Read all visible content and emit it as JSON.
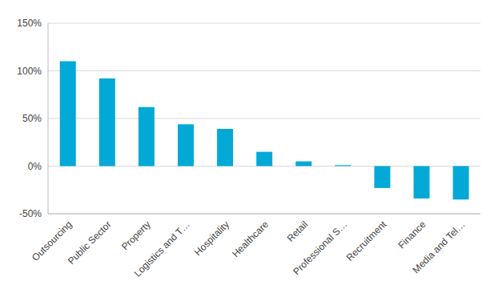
{
  "chart_data": {
    "type": "bar",
    "categories": [
      "Outsourcing",
      "Public Sector",
      "Property",
      "Logistics and T…",
      "Hospitality",
      "Healthcare",
      "Retail",
      "Professional S…",
      "Recruitment",
      "Finance",
      "Media and Tel…"
    ],
    "values": [
      110,
      92,
      62,
      44,
      39,
      15,
      5,
      1,
      -23,
      -34,
      -35
    ],
    "color": "#03a9d6",
    "ylim": [
      -50,
      150
    ],
    "yticks": [
      {
        "value": -50,
        "label": "-50%"
      },
      {
        "value": 0,
        "label": "0%"
      },
      {
        "value": 50,
        "label": "50%"
      },
      {
        "value": 100,
        "label": "100%"
      },
      {
        "value": 150,
        "label": "150%"
      }
    ],
    "grid": true
  }
}
